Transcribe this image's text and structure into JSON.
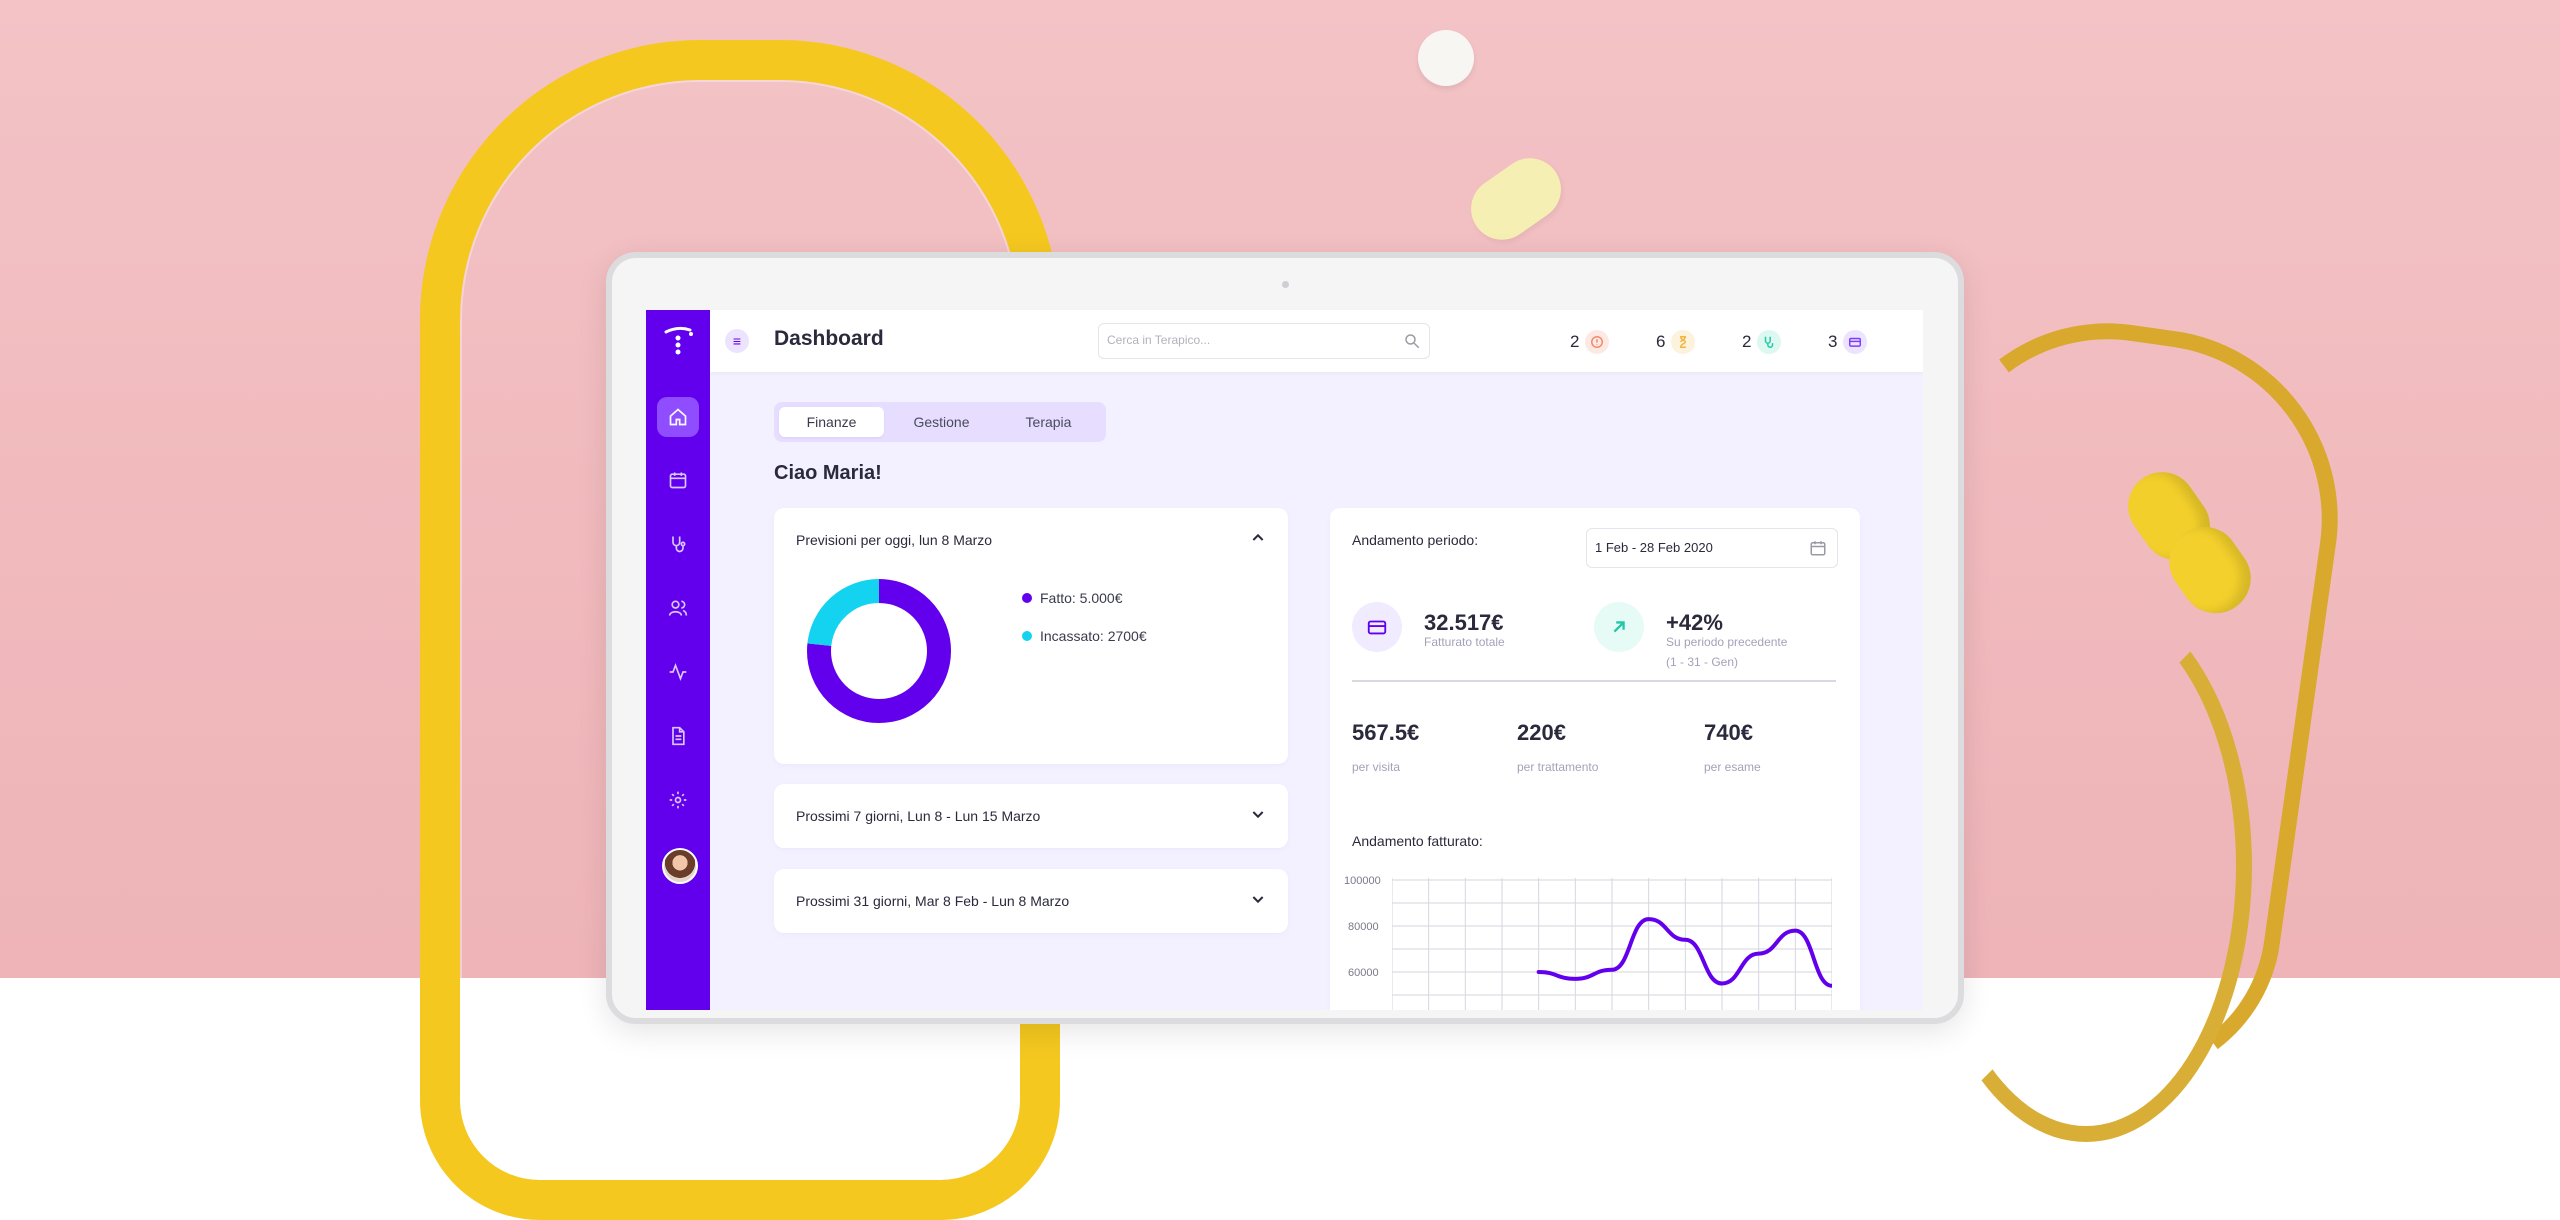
{
  "header": {
    "title": "Dashboard",
    "search_placeholder": "Cerca in Terapico...",
    "stats": [
      {
        "count": "2",
        "icon": "alert-icon",
        "color": "#f08a6a"
      },
      {
        "count": "6",
        "icon": "hourglass-icon",
        "color": "#f2b440"
      },
      {
        "count": "2",
        "icon": "stethoscope-icon",
        "color": "#22c7a8"
      },
      {
        "count": "3",
        "icon": "card-icon",
        "color": "#7b3cff"
      }
    ]
  },
  "sidebar": {
    "items": [
      "home-icon",
      "calendar-icon",
      "stethoscope-icon",
      "users-icon",
      "activity-icon",
      "document-icon",
      "settings-icon"
    ],
    "active": "home-icon"
  },
  "tabs": [
    "Finanze",
    "Gestione",
    "Terapia"
  ],
  "active_tab": "Finanze",
  "greeting": "Ciao Maria!",
  "forecast": {
    "title": "Previsioni per oggi, lun 8 Marzo",
    "legend": [
      {
        "label": "Fatto: 5.000€",
        "color": "#6200ee"
      },
      {
        "label": "Incassato: 2700€",
        "color": "#14d3f0"
      }
    ]
  },
  "collapsed_cards": [
    "Prossimi 7 giorni, Lun 8 - Lun 15 Marzo",
    "Prossimi 31 giorni, Mar 8 Feb - Lun 8 Marzo"
  ],
  "period": {
    "label": "Andamento periodo:",
    "date_range": "1 Feb - 28 Feb 2020",
    "total_value": "32.517€",
    "total_label": "Fatturato totale",
    "change_value": "+42%",
    "change_label_1": "Su periodo precedente",
    "change_label_2": "(1 - 31 - Gen)",
    "breakdown": [
      {
        "value": "567.5€",
        "label": "per visita"
      },
      {
        "value": "220€",
        "label": "per trattamento"
      },
      {
        "value": "740€",
        "label": "per esame"
      }
    ],
    "trend_label": "Andamento fatturato:"
  },
  "chart_data": {
    "type": "line",
    "title": "Andamento fatturato:",
    "y_ticks": [
      "100000",
      "80000",
      "60000"
    ],
    "ylim": [
      60000,
      100000
    ],
    "grid": true,
    "x": [
      0,
      1,
      2,
      3,
      4,
      5,
      6,
      7,
      8,
      9,
      10,
      11,
      12
    ],
    "series": [
      {
        "values": [
          null,
          null,
          null,
          null,
          60000,
          57000,
          61000,
          83000,
          74000,
          55000,
          68000,
          78000,
          54000
        ],
        "color": "#6200ee"
      }
    ]
  }
}
